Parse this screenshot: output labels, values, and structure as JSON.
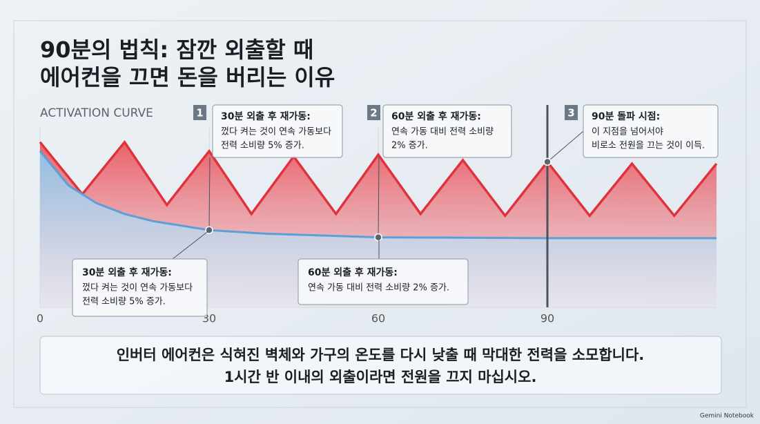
{
  "title_lines": [
    "90분의 법칙: 잠깐 외출할 때",
    "에어컨을 끄면 돈을 버리는 이유"
  ],
  "chart_data": {
    "type": "line",
    "axis_label": "ACTIVATION CURVE",
    "xlim": [
      0,
      120
    ],
    "xticks": [
      0,
      30,
      60,
      90
    ],
    "ylim": [
      0,
      100
    ],
    "grid": true,
    "series": [
      {
        "color": "#e0323c",
        "x": [
          0,
          7.5,
          15,
          22.5,
          30,
          37.5,
          45,
          52.5,
          60,
          67.5,
          75,
          82.5,
          90,
          97.5,
          105,
          112.5,
          120
        ],
        "values": [
          92,
          63,
          92,
          57,
          87,
          52,
          84,
          52,
          85,
          52,
          82,
          51,
          81,
          51,
          80,
          51,
          80
        ]
      },
      {
        "color": "#5b9fd6",
        "x": [
          0,
          5,
          10,
          15,
          20,
          30,
          40,
          60,
          90,
          120
        ],
        "values": [
          87,
          68,
          58,
          52,
          48,
          43,
          41,
          39,
          38.5,
          38.5
        ]
      }
    ],
    "callouts": [
      {
        "number": "1",
        "title": "30분 외출 후 재가동:",
        "lines": [
          "껐다 켜는 것이 연속 가동보다",
          "전력 소비량 5% 증가."
        ]
      },
      {
        "number": "2",
        "title": "60분 외출 후 재가동:",
        "lines": [
          "연속 가동 대비 전력 소비량",
          "2% 증가."
        ]
      },
      {
        "number": "3",
        "title": "90분 돌파 시점:",
        "lines": [
          "이 지점을 넘어서야",
          "비로소 전원을 끄는 것이 이득."
        ]
      }
    ],
    "lower_callouts": [
      {
        "title": "30분 외출 후 재가동:",
        "lines": [
          "껐다 켜는 것이 연속 가동보다",
          "전력 소비량 5% 증가."
        ]
      },
      {
        "title": "60분 외출 후 재가동:",
        "lines": [
          "연속 가동 대비 전력 소비량 2% 증가."
        ]
      }
    ]
  },
  "footer": {
    "lines": [
      "인버터 에어컨은 식혀진 벽체와 가구의 온도를 다시 낮출 때 막대한 전력을 소모합니다.",
      "1시간 반 이내의 외출이라면 전원을 끄지 마십시오."
    ]
  },
  "brand": "Gemini Notebook"
}
